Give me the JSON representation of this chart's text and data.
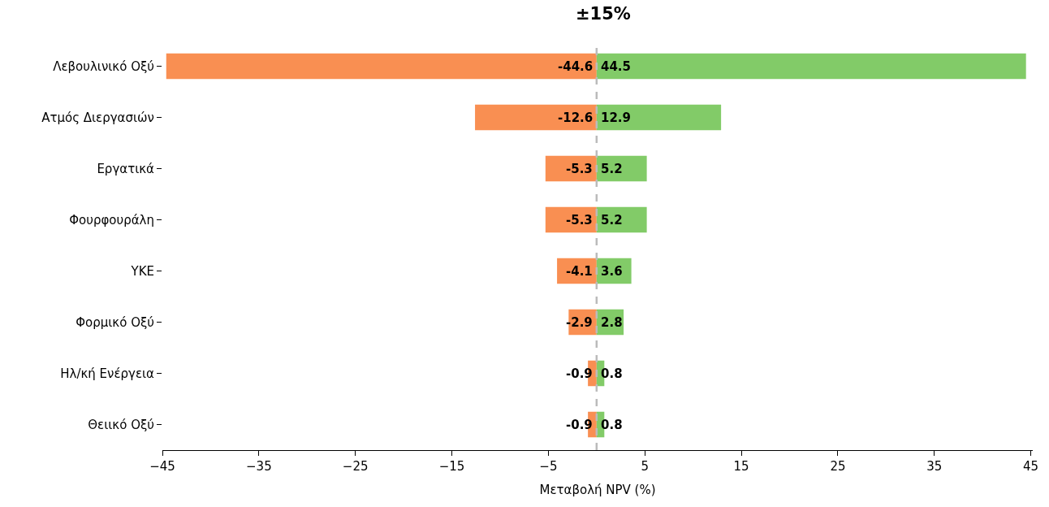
{
  "chart_data": {
    "type": "bar",
    "orientation": "horizontal",
    "title": "±15%",
    "xlabel": "Μεταβολή NPV (%)",
    "categories": [
      "Λεβουλινικό Οξύ",
      "Ατμός Διεργασιών",
      "Εργατικά",
      "Φουρφουράλη",
      "ΥΚΕ",
      "Φορμικό Οξύ",
      "Ηλ/κή Ενέργεια",
      "Θειικό Οξύ"
    ],
    "series": [
      {
        "color": "#f98f52",
        "values": [
          -44.6,
          -12.6,
          -5.3,
          -5.3,
          -4.1,
          -2.9,
          -0.9,
          -0.9
        ]
      },
      {
        "color": "#82cb68",
        "values": [
          44.5,
          12.9,
          5.2,
          5.2,
          3.6,
          2.8,
          0.8,
          0.8
        ]
      }
    ],
    "data_labels": true,
    "stacked": true,
    "xlim": [
      -45,
      45.2
    ],
    "xticks": [
      {
        "value": -45,
        "label": "−45"
      },
      {
        "value": -35,
        "label": "−35"
      },
      {
        "value": -25,
        "label": "−25"
      },
      {
        "value": -15,
        "label": "−15"
      },
      {
        "value": -5,
        "label": "−5"
      },
      5,
      15,
      25,
      35,
      45
    ],
    "ref_lines": [
      {
        "axis": "x",
        "value": 0,
        "color": "#bbbbbb",
        "line_style": "dashed"
      }
    ]
  }
}
